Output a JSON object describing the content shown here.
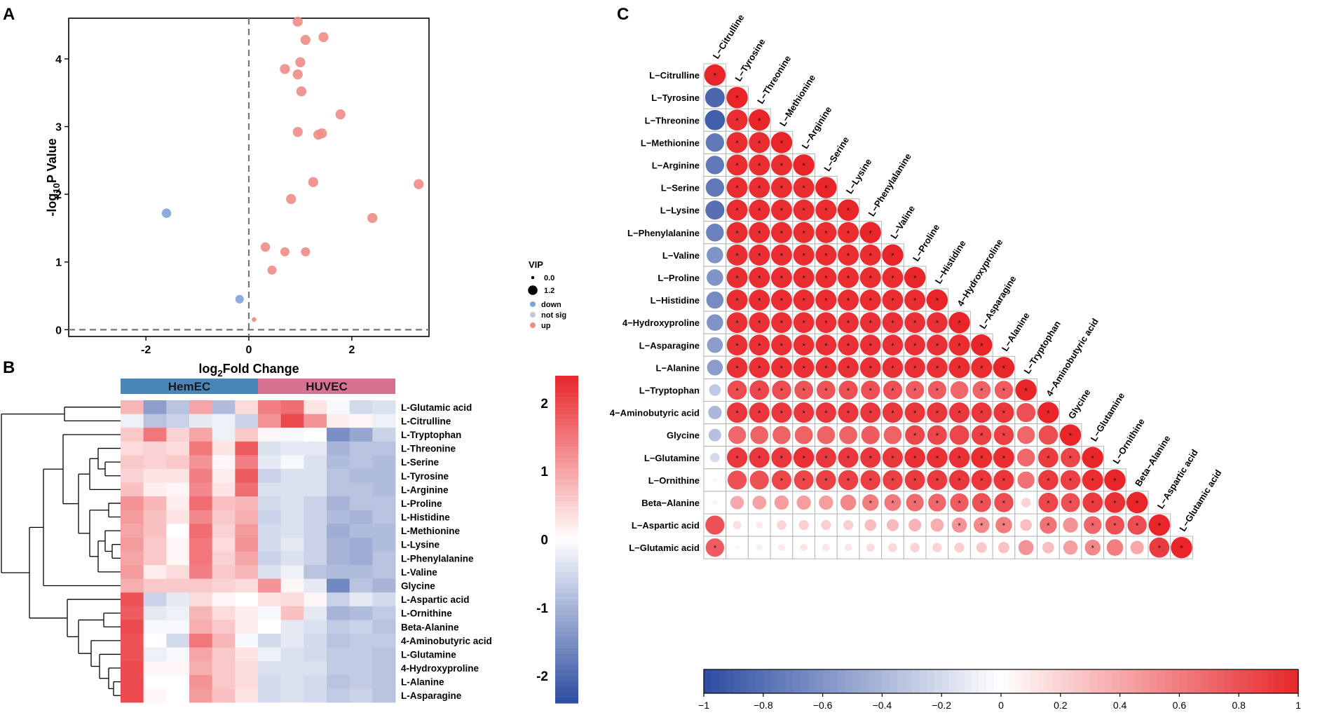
{
  "colors": {
    "up": "#F08C86",
    "down": "#7EA3D9",
    "notsig": "#C8C8C8",
    "neg": "#2C4CA0",
    "pos": "#E8262A",
    "banner_hem": "#4A86B8",
    "banner_huvec": "#D57391"
  },
  "panels": {
    "a": "A",
    "b": "B",
    "c": "C"
  },
  "chart_data": [
    {
      "id": "volcano",
      "type": "scatter",
      "xlabel": {
        "main": "log",
        "sub": "2",
        "rest": "Fold Change"
      },
      "ylabel": {
        "main": "-log",
        "sub": "10",
        "rest": "P Value"
      },
      "xlim": [
        -3.5,
        3.5
      ],
      "ylim": [
        -0.1,
        4.6
      ],
      "xticks": [
        -2,
        0,
        2
      ],
      "yticks": [
        0,
        1,
        2,
        3,
        4
      ],
      "threshold_x": 0,
      "threshold_y": 0,
      "legend": {
        "title": "VIP",
        "sizes": [
          {
            "label": "0.0",
            "vip": 0.0
          },
          {
            "label": "1.2",
            "vip": 1.2
          }
        ],
        "groups": [
          {
            "label": "down",
            "group": "down"
          },
          {
            "label": "not sig",
            "group": "notsig"
          },
          {
            "label": "up",
            "group": "up"
          }
        ]
      },
      "points": [
        {
          "x": 0.95,
          "y": 4.55,
          "vip": 1.1,
          "group": "up"
        },
        {
          "x": 1.45,
          "y": 4.32,
          "vip": 1.1,
          "group": "up"
        },
        {
          "x": 1.1,
          "y": 4.28,
          "vip": 1.1,
          "group": "up"
        },
        {
          "x": 1.0,
          "y": 3.95,
          "vip": 1.1,
          "group": "up"
        },
        {
          "x": 0.7,
          "y": 3.85,
          "vip": 1.1,
          "group": "up"
        },
        {
          "x": 0.95,
          "y": 3.77,
          "vip": 1.1,
          "group": "up"
        },
        {
          "x": 1.02,
          "y": 3.52,
          "vip": 1.1,
          "group": "up"
        },
        {
          "x": 1.78,
          "y": 3.18,
          "vip": 1.1,
          "group": "up"
        },
        {
          "x": 0.95,
          "y": 2.92,
          "vip": 1.1,
          "group": "up"
        },
        {
          "x": 1.42,
          "y": 2.9,
          "vip": 1.1,
          "group": "up"
        },
        {
          "x": 1.35,
          "y": 2.88,
          "vip": 1.1,
          "group": "up"
        },
        {
          "x": 3.3,
          "y": 2.15,
          "vip": 1.1,
          "group": "up"
        },
        {
          "x": 1.25,
          "y": 2.18,
          "vip": 1.1,
          "group": "up"
        },
        {
          "x": 0.82,
          "y": 1.93,
          "vip": 1.1,
          "group": "up"
        },
        {
          "x": 2.4,
          "y": 1.65,
          "vip": 1.1,
          "group": "up"
        },
        {
          "x": 0.32,
          "y": 1.22,
          "vip": 1.0,
          "group": "up"
        },
        {
          "x": 0.7,
          "y": 1.15,
          "vip": 0.95,
          "group": "up"
        },
        {
          "x": 1.1,
          "y": 1.15,
          "vip": 0.95,
          "group": "up"
        },
        {
          "x": 0.45,
          "y": 0.88,
          "vip": 0.95,
          "group": "up"
        },
        {
          "x": 0.1,
          "y": 0.15,
          "vip": 0.2,
          "group": "up"
        },
        {
          "x": -1.6,
          "y": 1.72,
          "vip": 1.0,
          "group": "down"
        },
        {
          "x": -0.18,
          "y": 0.45,
          "vip": 0.85,
          "group": "down"
        }
      ]
    },
    {
      "id": "heatmap",
      "type": "heatmap",
      "groups": [
        "HemEC",
        "HUVEC"
      ],
      "samples_per_group": 6,
      "rows": [
        "L-Glutamic acid",
        "L-Citrulline",
        "L-Tryptophan",
        "L-Threonine",
        "L-Serine",
        "L-Tyrosine",
        "L-Arginine",
        "L-Proline",
        "L-Histidine",
        "L-Methionine",
        "L-Lysine",
        "L-Phenylalanine",
        "L-Valine",
        "Glycine",
        "L-Aspartic acid",
        "L-Ornithine",
        "Beta-Alanine",
        "4-Aminobutyric acid",
        "L-Glutamine",
        "4-Hydroxyproline",
        "L-Alanine",
        "L-Asparagine"
      ],
      "values": [
        [
          0.8,
          -1.3,
          -0.8,
          1.0,
          -0.9,
          0.4,
          1.4,
          1.6,
          0.3,
          -0.1,
          -0.5,
          -0.4
        ],
        [
          -0.2,
          -0.8,
          -0.6,
          -0.3,
          -0.2,
          -0.6,
          1.2,
          2.0,
          1.2,
          0.2,
          0.1,
          -0.2
        ],
        [
          0.6,
          1.5,
          0.5,
          1.0,
          -0.2,
          0.6,
          0.1,
          -0.1,
          0.0,
          -1.5,
          -1.2,
          -0.6
        ],
        [
          0.4,
          0.5,
          0.4,
          1.5,
          0.3,
          1.8,
          -0.4,
          -0.3,
          -0.3,
          -1.0,
          -0.8,
          -0.8
        ],
        [
          0.6,
          0.5,
          0.6,
          1.2,
          0.1,
          1.4,
          -0.3,
          -0.1,
          -0.4,
          -0.9,
          -0.8,
          -0.9
        ],
        [
          0.5,
          0.3,
          0.3,
          1.4,
          0.2,
          1.8,
          -0.6,
          -0.4,
          -0.4,
          -0.8,
          -0.9,
          -0.9
        ],
        [
          0.7,
          0.2,
          0.1,
          1.3,
          0.3,
          1.6,
          -0.4,
          -0.4,
          -0.4,
          -0.8,
          -0.8,
          -0.9
        ],
        [
          1.2,
          0.8,
          0.2,
          1.6,
          0.7,
          0.8,
          -0.5,
          -0.4,
          -0.6,
          -1.0,
          -0.8,
          -0.8
        ],
        [
          1.1,
          0.7,
          0.3,
          1.3,
          0.6,
          0.9,
          -0.6,
          -0.4,
          -0.6,
          -0.9,
          -1.0,
          -0.8
        ],
        [
          1.0,
          0.7,
          0.0,
          1.6,
          0.5,
          1.1,
          -0.5,
          -0.4,
          -0.6,
          -1.1,
          -0.9,
          -0.9
        ],
        [
          1.1,
          0.6,
          0.1,
          1.5,
          0.4,
          1.2,
          -0.5,
          -0.3,
          -0.6,
          -1.0,
          -1.1,
          -0.9
        ],
        [
          1.0,
          0.6,
          0.1,
          1.5,
          0.5,
          1.0,
          -0.6,
          -0.4,
          -0.6,
          -1.0,
          -1.1,
          -0.8
        ],
        [
          1.1,
          0.2,
          0.4,
          1.4,
          0.6,
          0.8,
          -0.4,
          -0.2,
          -0.8,
          -0.9,
          -0.9,
          -0.8
        ],
        [
          0.9,
          0.6,
          0.6,
          0.6,
          0.5,
          0.4,
          1.2,
          0.1,
          -0.3,
          -1.6,
          -0.8,
          -1.0
        ],
        [
          1.9,
          -0.6,
          -0.3,
          0.4,
          0.1,
          0.0,
          0.3,
          0.4,
          0.1,
          -0.6,
          -0.3,
          -0.5
        ],
        [
          1.8,
          -0.3,
          -0.2,
          0.8,
          0.4,
          0.2,
          -0.1,
          0.7,
          -0.3,
          -1.0,
          -0.9,
          -0.7
        ],
        [
          2.0,
          -0.1,
          -0.1,
          0.9,
          0.6,
          0.2,
          0.0,
          -0.3,
          -0.4,
          -0.7,
          -0.6,
          -0.8
        ],
        [
          1.9,
          0.0,
          -0.5,
          1.5,
          0.8,
          -0.1,
          -0.5,
          -0.3,
          -0.5,
          -0.8,
          -0.7,
          -0.7
        ],
        [
          1.9,
          -0.2,
          -0.1,
          1.0,
          0.6,
          0.3,
          -0.2,
          -0.4,
          -0.5,
          -0.7,
          -0.7,
          -0.8
        ],
        [
          2.0,
          0.1,
          0.1,
          0.9,
          0.6,
          0.4,
          -0.4,
          -0.4,
          -0.4,
          -0.7,
          -0.7,
          -0.8
        ],
        [
          2.0,
          0.0,
          0.0,
          1.2,
          0.6,
          0.4,
          -0.5,
          -0.4,
          -0.5,
          -0.8,
          -0.7,
          -0.8
        ],
        [
          2.0,
          0.1,
          0.0,
          1.1,
          0.7,
          0.3,
          -0.5,
          -0.4,
          -0.5,
          -0.7,
          -0.6,
          -0.8
        ]
      ],
      "scale": {
        "min": -2.4,
        "max": 2.4,
        "ticks": [
          2,
          1,
          0,
          -1,
          -2
        ],
        "tick_labels": [
          "2",
          "1",
          "0",
          "-1",
          "-2"
        ]
      }
    },
    {
      "id": "correlation",
      "type": "heatmap",
      "labels": [
        "L−Citrulline",
        "L−Tyrosine",
        "L−Threonine",
        "L−Methionine",
        "L−Arginine",
        "L−Serine",
        "L−Lysine",
        "L−Phenylalanine",
        "L−Valine",
        "L−Proline",
        "L−Histidine",
        "4−Hydroxyproline",
        "L−Asparagine",
        "L−Alanine",
        "L−Tryptophan",
        "4−Aminobutyric acid",
        "Glycine",
        "L−Glutamine",
        "L−Ornithine",
        "Beta−Alanine",
        "L−Aspartic acid",
        "L−Glutamic acid"
      ],
      "values": [
        [
          1.0
        ],
        [
          -0.85,
          1.0
        ],
        [
          -0.9,
          0.97,
          1.0
        ],
        [
          -0.75,
          0.97,
          0.97,
          1.0
        ],
        [
          -0.75,
          0.97,
          0.97,
          0.97,
          1.0
        ],
        [
          -0.75,
          0.97,
          0.97,
          0.97,
          0.97,
          1.0
        ],
        [
          -0.8,
          0.97,
          0.97,
          0.97,
          0.97,
          0.97,
          1.0
        ],
        [
          -0.7,
          0.97,
          0.97,
          0.97,
          0.97,
          0.97,
          0.97,
          1.0
        ],
        [
          -0.6,
          0.97,
          0.97,
          0.97,
          0.97,
          0.97,
          0.97,
          0.97,
          1.0
        ],
        [
          -0.6,
          0.97,
          0.97,
          0.97,
          0.97,
          0.97,
          0.97,
          0.97,
          0.97,
          1.0
        ],
        [
          -0.65,
          0.97,
          0.97,
          0.97,
          0.97,
          0.97,
          0.97,
          0.97,
          0.97,
          0.97,
          1.0
        ],
        [
          -0.6,
          0.95,
          0.95,
          0.95,
          0.95,
          0.95,
          0.95,
          0.95,
          0.95,
          0.95,
          0.95,
          1.0
        ],
        [
          -0.55,
          0.95,
          0.95,
          0.95,
          0.95,
          0.95,
          0.95,
          0.95,
          0.95,
          0.95,
          0.95,
          0.97,
          1.0
        ],
        [
          -0.55,
          0.95,
          0.95,
          0.95,
          0.95,
          0.95,
          0.95,
          0.95,
          0.95,
          0.95,
          0.95,
          0.97,
          0.97,
          1.0
        ],
        [
          -0.3,
          0.82,
          0.85,
          0.82,
          0.78,
          0.78,
          0.8,
          0.8,
          0.8,
          0.75,
          0.75,
          0.7,
          0.72,
          0.75,
          1.0
        ],
        [
          -0.4,
          0.92,
          0.92,
          0.92,
          0.92,
          0.92,
          0.92,
          0.92,
          0.92,
          0.92,
          0.92,
          0.92,
          0.92,
          0.92,
          0.8,
          1.0
        ],
        [
          -0.35,
          0.7,
          0.72,
          0.72,
          0.72,
          0.72,
          0.72,
          0.75,
          0.72,
          0.85,
          0.85,
          0.85,
          0.88,
          0.88,
          0.7,
          0.82,
          1.0
        ],
        [
          -0.2,
          0.92,
          0.92,
          0.92,
          0.95,
          0.92,
          0.92,
          0.92,
          0.92,
          0.95,
          0.95,
          0.95,
          0.97,
          0.97,
          0.7,
          0.9,
          0.85,
          1.0
        ],
        [
          -0.05,
          0.8,
          0.8,
          0.85,
          0.85,
          0.88,
          0.88,
          0.88,
          0.88,
          0.9,
          0.9,
          0.92,
          0.92,
          0.92,
          0.65,
          0.9,
          0.88,
          0.97,
          1.0
        ],
        [
          0.05,
          0.4,
          0.42,
          0.45,
          0.45,
          0.45,
          0.55,
          0.6,
          0.62,
          0.68,
          0.7,
          0.75,
          0.8,
          0.82,
          0.2,
          0.85,
          0.8,
          0.9,
          0.95,
          1.0
        ],
        [
          0.8,
          0.15,
          0.1,
          0.2,
          0.22,
          0.22,
          0.22,
          0.3,
          0.32,
          0.35,
          0.38,
          0.5,
          0.55,
          0.6,
          0.3,
          0.65,
          0.5,
          0.7,
          0.8,
          0.82,
          1.0
        ],
        [
          0.75,
          0.05,
          0.08,
          0.1,
          0.12,
          0.12,
          0.12,
          0.15,
          0.18,
          0.2,
          0.2,
          0.22,
          0.25,
          0.28,
          0.5,
          0.3,
          0.45,
          0.55,
          0.6,
          0.4,
          0.9,
          1.0
        ]
      ],
      "significant": [
        [
          0
        ],
        [
          1
        ],
        [
          1,
          2
        ],
        [
          1,
          2,
          3
        ],
        [
          1,
          2,
          3,
          4
        ],
        [
          1,
          2,
          3,
          4,
          5
        ],
        [
          1,
          2,
          3,
          4,
          5,
          6
        ],
        [
          1,
          2,
          3,
          4,
          5,
          6,
          7
        ],
        [
          1,
          2,
          3,
          4,
          5,
          6,
          7,
          8
        ],
        [
          1,
          2,
          3,
          4,
          5,
          6,
          7,
          8,
          9
        ],
        [
          1,
          2,
          3,
          4,
          5,
          6,
          7,
          8,
          9,
          10
        ],
        [
          1,
          2,
          3,
          4,
          5,
          6,
          7,
          8,
          9,
          10,
          11
        ],
        [
          1,
          2,
          3,
          4,
          5,
          6,
          7,
          8,
          9,
          10,
          11,
          12
        ],
        [
          1,
          2,
          3,
          4,
          5,
          6,
          7,
          8,
          9,
          10,
          11,
          12,
          13
        ],
        [
          1,
          2,
          3,
          4,
          5,
          6,
          7,
          8,
          9,
          10,
          12,
          13,
          14
        ],
        [
          1,
          2,
          3,
          4,
          5,
          6,
          7,
          8,
          9,
          10,
          11,
          12,
          13,
          15
        ],
        [
          9,
          10,
          12,
          13,
          16
        ],
        [
          1,
          2,
          3,
          4,
          5,
          6,
          7,
          8,
          9,
          10,
          11,
          12,
          13,
          15,
          16,
          17
        ],
        [
          3,
          4,
          5,
          6,
          7,
          8,
          9,
          10,
          11,
          12,
          13,
          15,
          16,
          17,
          18
        ],
        [
          7,
          8,
          9,
          10,
          11,
          12,
          13,
          15,
          16,
          17,
          18,
          19
        ],
        [
          11,
          12,
          13,
          15,
          17,
          18,
          19,
          20
        ],
        [
          0,
          17,
          20,
          21
        ]
      ],
      "scale": {
        "min": -1,
        "max": 1,
        "ticks": [
          -1,
          -0.8,
          -0.6,
          -0.4,
          -0.2,
          0,
          0.2,
          0.4,
          0.6,
          0.8,
          1
        ],
        "tick_labels": [
          "−1",
          "−0.8",
          "−0.6",
          "−0.4",
          "−0.2",
          "0",
          "0.2",
          "0.4",
          "0.6",
          "0.8",
          "1"
        ]
      }
    }
  ]
}
